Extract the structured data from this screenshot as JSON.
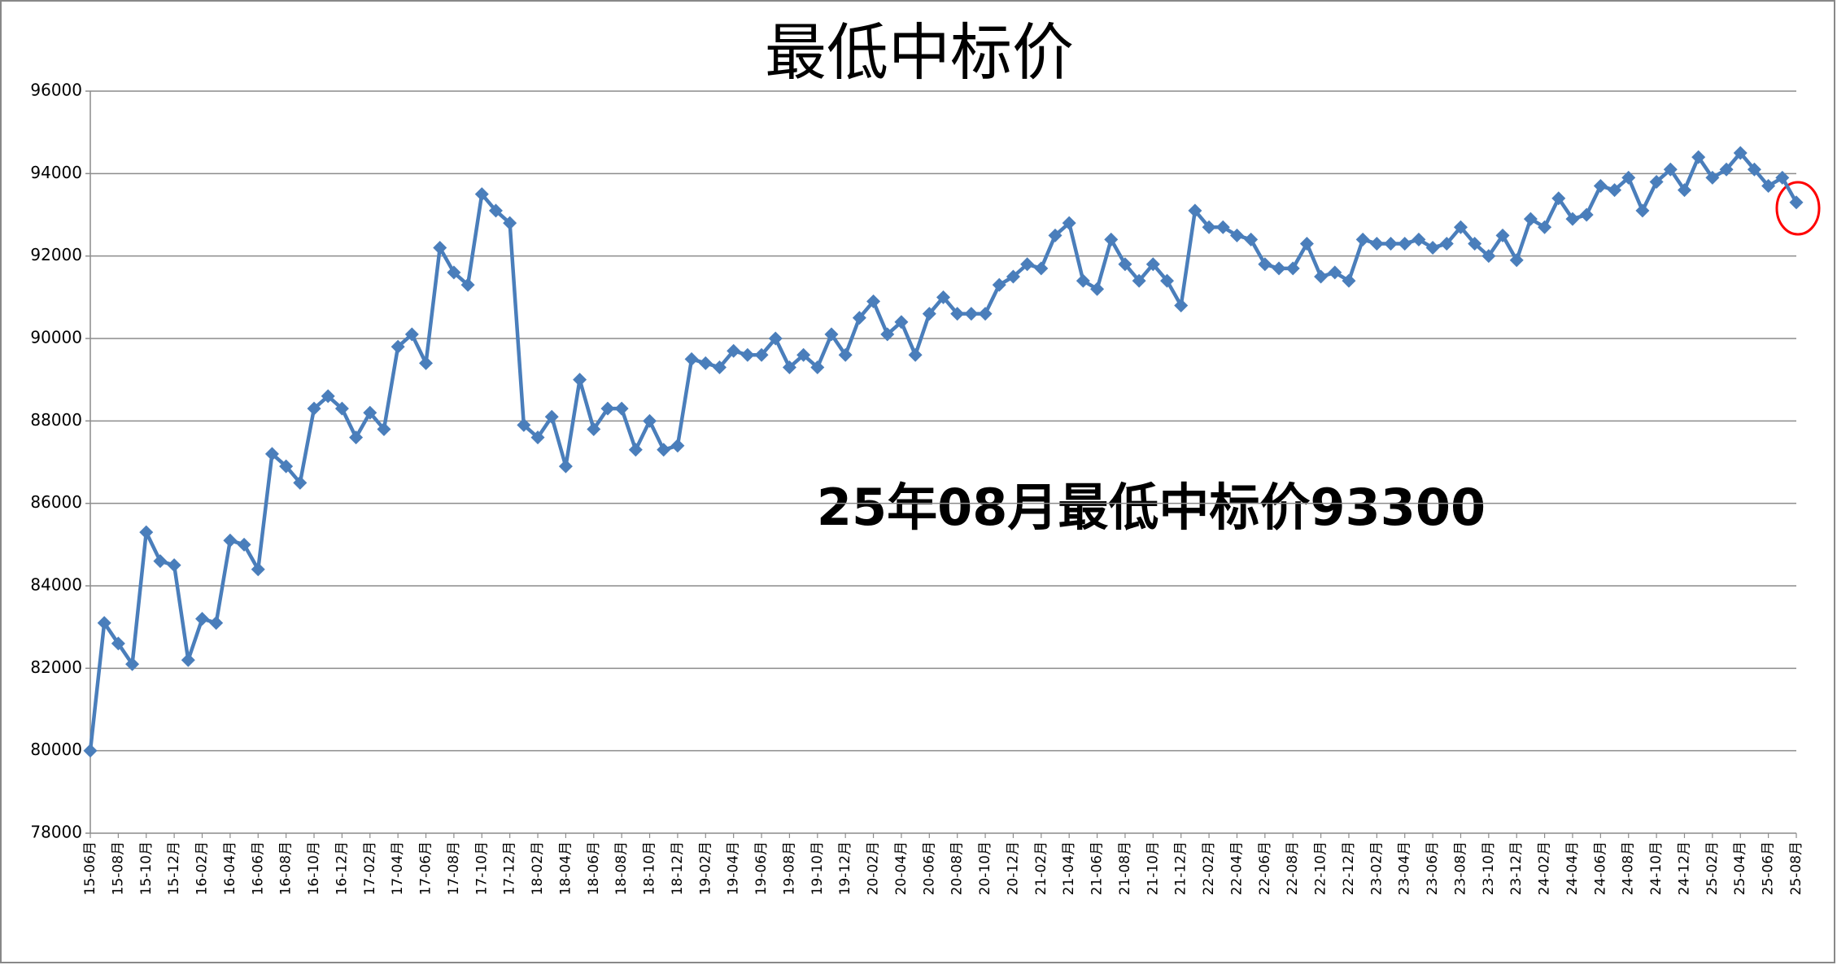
{
  "chart_data": {
    "type": "line",
    "title": "最低中标价",
    "annotation": "25年08月最低中标价93300",
    "color": "#4a7ebb",
    "annotation_color": "#ff0000",
    "grid": true,
    "ylim": [
      78000,
      96000
    ],
    "yticks": [
      78000,
      80000,
      82000,
      84000,
      86000,
      88000,
      90000,
      92000,
      94000,
      96000
    ],
    "categories": [
      "15-06月",
      null,
      "15-08月",
      null,
      "15-10月",
      null,
      "15-12月",
      null,
      "16-02月",
      null,
      "16-04月",
      null,
      "16-06月",
      null,
      "16-08月",
      null,
      "16-10月",
      null,
      "16-12月",
      null,
      "17-02月",
      null,
      "17-04月",
      null,
      "17-06月",
      null,
      "17-08月",
      null,
      "17-10月",
      null,
      "17-12月",
      null,
      "18-02月",
      null,
      "18-04月",
      null,
      "18-06月",
      null,
      "18-08月",
      null,
      "18-10月",
      null,
      "18-12月",
      null,
      "19-02月",
      null,
      "19-04月",
      null,
      "19-06月",
      null,
      "19-08月",
      null,
      "19-10月",
      null,
      "19-12月",
      null,
      "20-02月",
      null,
      "20-04月",
      null,
      "20-06月",
      null,
      "20-08月",
      null,
      "20-10月",
      null,
      "20-12月",
      null,
      "21-02月",
      null,
      "21-04月",
      null,
      "21-06月",
      null,
      "21-08月",
      null,
      "21-10月",
      null,
      "21-12月",
      null,
      "22-02月",
      null,
      "22-04月",
      null,
      "22-06月",
      null,
      "22-08月",
      null,
      "22-10月",
      null,
      "22-12月",
      null,
      "23-02月",
      null,
      "23-04月",
      null,
      "23-06月",
      null,
      "23-08月",
      null,
      "23-10月",
      null,
      "23-12月",
      null,
      "24-02月",
      null,
      "24-04月",
      null,
      "24-06月",
      null,
      "24-08月",
      null,
      "24-10月",
      null,
      "24-12月",
      null,
      "25-02月",
      null,
      "25-04月",
      null,
      "25-06月",
      null,
      "25-08月"
    ],
    "values": [
      80000,
      83100,
      82600,
      82100,
      85300,
      84600,
      84500,
      82200,
      83200,
      83100,
      85100,
      85000,
      84400,
      87200,
      86900,
      86500,
      88300,
      88600,
      88300,
      87600,
      88200,
      87800,
      89800,
      90100,
      89400,
      92200,
      91600,
      91300,
      93500,
      93100,
      92800,
      87900,
      87600,
      88100,
      86900,
      89000,
      87800,
      88300,
      88300,
      87300,
      88000,
      87300,
      87400,
      89500,
      89400,
      89300,
      89700,
      89600,
      89600,
      90000,
      89300,
      89600,
      89300,
      90100,
      89600,
      90500,
      90900,
      90100,
      90400,
      89600,
      90600,
      91000,
      90600,
      90600,
      90600,
      91300,
      91500,
      91800,
      91700,
      92500,
      92800,
      91400,
      91200,
      92400,
      91800,
      91400,
      91800,
      91400,
      90800,
      93100,
      92700,
      92700,
      92500,
      92400,
      91800,
      91700,
      91700,
      92300,
      91500,
      91600,
      91400,
      92400,
      92300,
      92300,
      92300,
      92400,
      92200,
      92300,
      92700,
      92300,
      92000,
      92500,
      91900,
      92900,
      92700,
      93400,
      92900,
      93000,
      93700,
      93600,
      93900,
      93100,
      93800,
      94100,
      93600,
      94400,
      93900,
      94100,
      94500,
      94100,
      93700,
      93900,
      93300
    ]
  }
}
